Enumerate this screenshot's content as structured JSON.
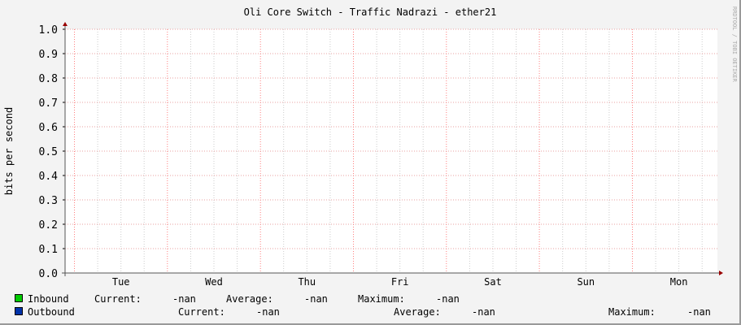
{
  "chart_data": {
    "type": "line",
    "title": "Oli Core Switch - Traffic Nadrazi - ether21",
    "ylabel": "bits per second",
    "xlabel": "",
    "watermark": "RRDTOOL / TOBI OETIKER",
    "ylim": [
      0.0,
      1.0
    ],
    "yticks": [
      "0.0",
      "0.1",
      "0.2",
      "0.3",
      "0.4",
      "0.5",
      "0.6",
      "0.7",
      "0.8",
      "0.9",
      "1.0"
    ],
    "xticks": [
      "Tue",
      "Wed",
      "Thu",
      "Fri",
      "Sat",
      "Sun",
      "Mon"
    ],
    "grid": true,
    "series": [
      {
        "name": "Inbound",
        "color": "#00cc00",
        "values": []
      },
      {
        "name": "Outbound",
        "color": "#0033aa",
        "values": []
      }
    ],
    "legend": [
      {
        "name": "Inbound",
        "color": "#00cc00",
        "current_label": "Current:",
        "current": "-nan",
        "average_label": "Average:",
        "average": "-nan",
        "maximum_label": "Maximum:",
        "maximum": "-nan"
      },
      {
        "name": "Outbound",
        "color": "#0033aa",
        "current_label": "Current:",
        "current": "-nan",
        "average_label": "Average:",
        "average": "-nan",
        "maximum_label": "Maximum:",
        "maximum": "-nan"
      }
    ],
    "colors": {
      "major_grid": "#ff8080",
      "minor_grid": "#cccccc",
      "axis": "#990000",
      "background": "#f3f3f3",
      "canvas": "#ffffff"
    }
  }
}
